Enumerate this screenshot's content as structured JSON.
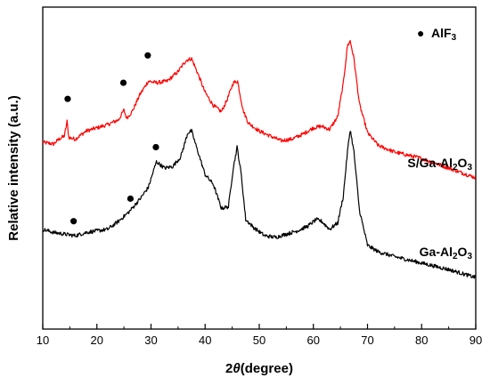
{
  "chart_data": {
    "type": "line",
    "xlabel_prefix": "2",
    "xlabel_symbol": "θ",
    "xlabel_suffix": "(degree)",
    "ylabel": "Relative intensity (a.u.)",
    "xlim": [
      10,
      90
    ],
    "ylim": [
      0,
      100
    ],
    "x_ticks": [
      10,
      20,
      30,
      40,
      50,
      60,
      70,
      80,
      90
    ],
    "y_ticks_labeled": false,
    "grid": false,
    "legend": {
      "position": "top-right",
      "marker": "●",
      "label_main": "AlF",
      "label_sub": "3"
    },
    "series": [
      {
        "name": "S/Ga-Al2O3",
        "label_parts": [
          {
            "t": "S/Ga-Al",
            "sub": false
          },
          {
            "t": "2",
            "sub": true
          },
          {
            "t": "O",
            "sub": false
          },
          {
            "t": "3",
            "sub": true
          }
        ],
        "color": "#ff0000",
        "points": [
          [
            10,
            58.0
          ],
          [
            12,
            57.5
          ],
          [
            13,
            59.0
          ],
          [
            14,
            60.0
          ],
          [
            14.5,
            64.5
          ],
          [
            14.8,
            59.5
          ],
          [
            16,
            59.0
          ],
          [
            18,
            61.5
          ],
          [
            20,
            62.5
          ],
          [
            22,
            63.5
          ],
          [
            24,
            65.0
          ],
          [
            25,
            68.0
          ],
          [
            25.5,
            65.5
          ],
          [
            26.5,
            67.5
          ],
          [
            28,
            73.0
          ],
          [
            29.5,
            77.0
          ],
          [
            31,
            76.5
          ],
          [
            33,
            77.0
          ],
          [
            35,
            80.0
          ],
          [
            36.5,
            83.5
          ],
          [
            37.5,
            84.0
          ],
          [
            38.5,
            80.0
          ],
          [
            40,
            73.5
          ],
          [
            41.5,
            69.5
          ],
          [
            43,
            67.5
          ],
          [
            44,
            71.0
          ],
          [
            45.2,
            76.5
          ],
          [
            46,
            77.0
          ],
          [
            47,
            68.0
          ],
          [
            48,
            64.0
          ],
          [
            50,
            61.5
          ],
          [
            52,
            60.0
          ],
          [
            54,
            58.5
          ],
          [
            56,
            59.0
          ],
          [
            58,
            60.5
          ],
          [
            60,
            62.5
          ],
          [
            61.5,
            63.0
          ],
          [
            63,
            62.0
          ],
          [
            64.5,
            66.0
          ],
          [
            65.5,
            76.0
          ],
          [
            66.3,
            88.0
          ],
          [
            66.8,
            89.5
          ],
          [
            67.5,
            84.0
          ],
          [
            68.5,
            70.0
          ],
          [
            70,
            61.0
          ],
          [
            72,
            57.0
          ],
          [
            75,
            55.0
          ],
          [
            80,
            53.0
          ],
          [
            85,
            50.0
          ],
          [
            90,
            47.0
          ]
        ]
      },
      {
        "name": "Ga-Al2O3",
        "label_parts": [
          {
            "t": "Ga-Al",
            "sub": false
          },
          {
            "t": "2",
            "sub": true
          },
          {
            "t": "O",
            "sub": false
          },
          {
            "t": "3",
            "sub": true
          }
        ],
        "color": "#000000",
        "points": [
          [
            10,
            31.0
          ],
          [
            12,
            30.0
          ],
          [
            14,
            29.5
          ],
          [
            16,
            29.0
          ],
          [
            18,
            30.0
          ],
          [
            20,
            30.5
          ],
          [
            22,
            31.0
          ],
          [
            24,
            33.5
          ],
          [
            26,
            36.5
          ],
          [
            28,
            40.5
          ],
          [
            29.5,
            44.0
          ],
          [
            31,
            52.0
          ],
          [
            32.5,
            50.0
          ],
          [
            34,
            50.5
          ],
          [
            35.5,
            53.5
          ],
          [
            36.8,
            61.0
          ],
          [
            37.5,
            61.5
          ],
          [
            38.5,
            56.0
          ],
          [
            40,
            48.0
          ],
          [
            41.5,
            45.0
          ],
          [
            43,
            37.5
          ],
          [
            44.3,
            38.0
          ],
          [
            45.2,
            50.0
          ],
          [
            45.9,
            56.5
          ],
          [
            46.6,
            49.0
          ],
          [
            47.5,
            34.0
          ],
          [
            49,
            31.5
          ],
          [
            51,
            29.0
          ],
          [
            53,
            28.5
          ],
          [
            55,
            29.5
          ],
          [
            57,
            30.5
          ],
          [
            59,
            32.0
          ],
          [
            60.5,
            34.0
          ],
          [
            61.5,
            33.5
          ],
          [
            63,
            31.0
          ],
          [
            64.5,
            33.0
          ],
          [
            65.5,
            41.0
          ],
          [
            66.3,
            55.0
          ],
          [
            66.8,
            62.0
          ],
          [
            67.5,
            55.0
          ],
          [
            68.5,
            37.0
          ],
          [
            70,
            26.0
          ],
          [
            72,
            24.0
          ],
          [
            75,
            22.5
          ],
          [
            80,
            20.5
          ],
          [
            85,
            18.5
          ],
          [
            90,
            16.0
          ]
        ]
      }
    ],
    "markers": [
      {
        "series": "S/Ga-Al2O3",
        "x": 14.6,
        "y": 71.5
      },
      {
        "series": "S/Ga-Al2O3",
        "x": 24.9,
        "y": 76.5
      },
      {
        "series": "S/Ga-Al2O3",
        "x": 29.4,
        "y": 85.0
      },
      {
        "series": "Ga-Al2O3",
        "x": 15.7,
        "y": 33.5
      },
      {
        "series": "Ga-Al2O3",
        "x": 26.2,
        "y": 40.5
      },
      {
        "series": "Ga-Al2O3",
        "x": 30.9,
        "y": 56.5
      }
    ]
  }
}
